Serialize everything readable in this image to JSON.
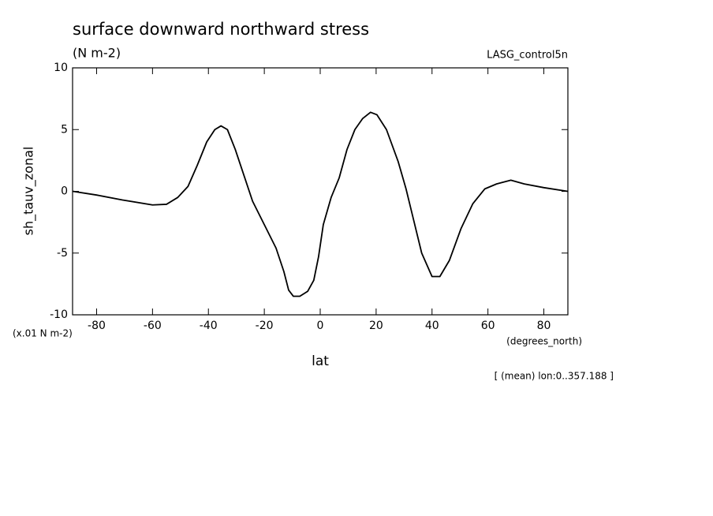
{
  "chart_data": {
    "type": "line",
    "title": "surface downward northward stress",
    "subtitle": "(N m-2)",
    "dataset": "LASG_control5n",
    "ylabel": "sh_tauv_zonal",
    "yunits": "(x.01 N m-2)",
    "xunits": "(degrees_north)",
    "xlabel": "lat",
    "note": "[ (mean) lon:0..357.188 ]",
    "x": [
      -88.5,
      -80,
      -70.7,
      -60,
      -55,
      -51,
      -47.3,
      -44,
      -40.6,
      -37.7,
      -35.5,
      -33.2,
      -30.4,
      -27,
      -24.2,
      -20,
      -15.8,
      -13,
      -11.3,
      -9.6,
      -7.3,
      -4.5,
      -2.3,
      -0.6,
      1.1,
      3.9,
      6.8,
      9.6,
      12.4,
      15.2,
      18,
      20.3,
      23.7,
      27.9,
      30.7,
      33.5,
      36.3,
      40,
      42.8,
      46.2,
      50.4,
      54.6,
      58.9,
      63.1,
      68.2,
      73,
      80,
      88.5
    ],
    "series": [
      {
        "name": "sh_tauv_zonal",
        "color": "#000000",
        "values": [
          0.0,
          -0.3,
          -0.7,
          -1.1,
          -1.05,
          -0.5,
          0.4,
          2.1,
          4.0,
          5.0,
          5.3,
          5.0,
          3.4,
          1.1,
          -0.8,
          -2.7,
          -4.6,
          -6.5,
          -8.0,
          -8.5,
          -8.5,
          -8.1,
          -7.2,
          -5.3,
          -2.7,
          -0.5,
          1.1,
          3.4,
          5.0,
          5.9,
          6.4,
          6.2,
          5.0,
          2.4,
          0.2,
          -2.4,
          -5.0,
          -6.9,
          -6.9,
          -5.6,
          -3.0,
          -1.0,
          0.2,
          0.6,
          0.9,
          0.6,
          0.3,
          0.0
        ]
      }
    ],
    "xlim": [
      -88.6,
      88.6
    ],
    "xticks": [
      -80,
      -60,
      -40,
      -20,
      0,
      20,
      40,
      60,
      80
    ],
    "ylim": [
      -10,
      10
    ],
    "yticks": [
      -10,
      -5,
      0,
      5,
      10
    ]
  }
}
